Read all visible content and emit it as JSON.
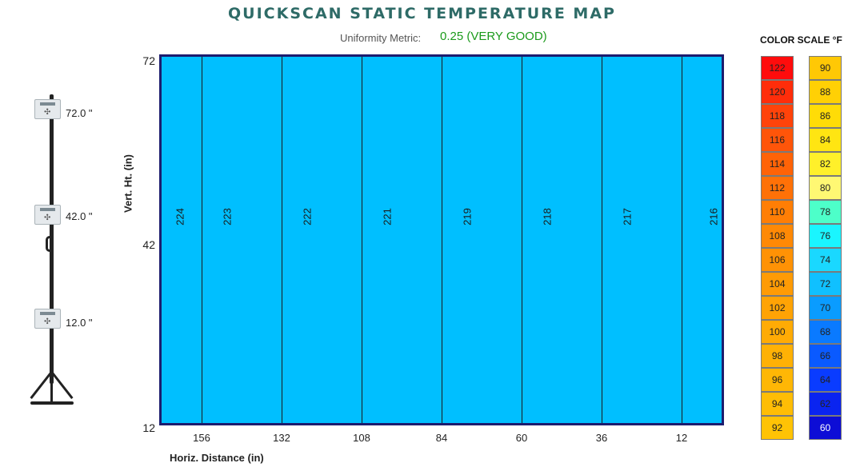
{
  "header": {
    "title": "QUICKSCAN STATIC TEMPERATURE MAP",
    "uniformity_label": "Uniformity Metric:",
    "uniformity_value": "0.25 (VERY GOOD)",
    "uniformity_color": "#1b9a1b"
  },
  "sensors": [
    {
      "label": "72.0 \""
    },
    {
      "label": "42.0 \""
    },
    {
      "label": "12.0 \""
    }
  ],
  "chart_data": {
    "type": "heatmap",
    "title": "QUICKSCAN STATIC TEMPERATURE MAP",
    "xlabel": "Horiz. Distance (in)",
    "ylabel": "Vert. Ht. (in)",
    "x_ticks": [
      "156",
      "132",
      "108",
      "84",
      "60",
      "36",
      "12"
    ],
    "y_ticks": [
      "72",
      "42",
      "12"
    ],
    "column_boundaries_in": [
      168,
      156,
      132,
      108,
      84,
      60,
      36,
      12,
      0
    ],
    "column_values": [
      224,
      223,
      222,
      221,
      219,
      218,
      217,
      216
    ],
    "fill_color": "#00bfff",
    "grid_line_color": "#1a1a1a",
    "border_color": "#1c1c6e",
    "xlim": [
      168,
      0
    ],
    "ylim": [
      12,
      72
    ]
  },
  "color_scale": {
    "title": "COLOR SCALE  °F",
    "left": [
      {
        "value": "122",
        "color": "#ff0c0c"
      },
      {
        "value": "120",
        "color": "#ff2d0a"
      },
      {
        "value": "118",
        "color": "#ff430a"
      },
      {
        "value": "116",
        "color": "#ff5509"
      },
      {
        "value": "114",
        "color": "#ff6307"
      },
      {
        "value": "112",
        "color": "#ff7107"
      },
      {
        "value": "110",
        "color": "#ff7e05"
      },
      {
        "value": "108",
        "color": "#ff8905"
      },
      {
        "value": "106",
        "color": "#ff9205"
      },
      {
        "value": "104",
        "color": "#ff9b05"
      },
      {
        "value": "102",
        "color": "#ffa305"
      },
      {
        "value": "100",
        "color": "#ffab05"
      },
      {
        "value": "98",
        "color": "#ffb105"
      },
      {
        "value": "96",
        "color": "#ffb705"
      },
      {
        "value": "94",
        "color": "#ffbd05"
      },
      {
        "value": "92",
        "color": "#ffc305"
      }
    ],
    "right": [
      {
        "value": "90",
        "color": "#ffc805"
      },
      {
        "value": "88",
        "color": "#ffd005"
      },
      {
        "value": "86",
        "color": "#ffdc07"
      },
      {
        "value": "84",
        "color": "#ffe512"
      },
      {
        "value": "82",
        "color": "#fff02a"
      },
      {
        "value": "80",
        "color": "#fff873"
      },
      {
        "value": "78",
        "color": "#4dffc9"
      },
      {
        "value": "76",
        "color": "#1af5ff"
      },
      {
        "value": "74",
        "color": "#1ad8ff"
      },
      {
        "value": "72",
        "color": "#10c0ff"
      },
      {
        "value": "70",
        "color": "#0a9cff"
      },
      {
        "value": "68",
        "color": "#0a7aff"
      },
      {
        "value": "66",
        "color": "#0a5aff"
      },
      {
        "value": "64",
        "color": "#0a3cff"
      },
      {
        "value": "62",
        "color": "#0a24f0"
      },
      {
        "value": "60",
        "color": "#0d0dd6"
      }
    ]
  }
}
